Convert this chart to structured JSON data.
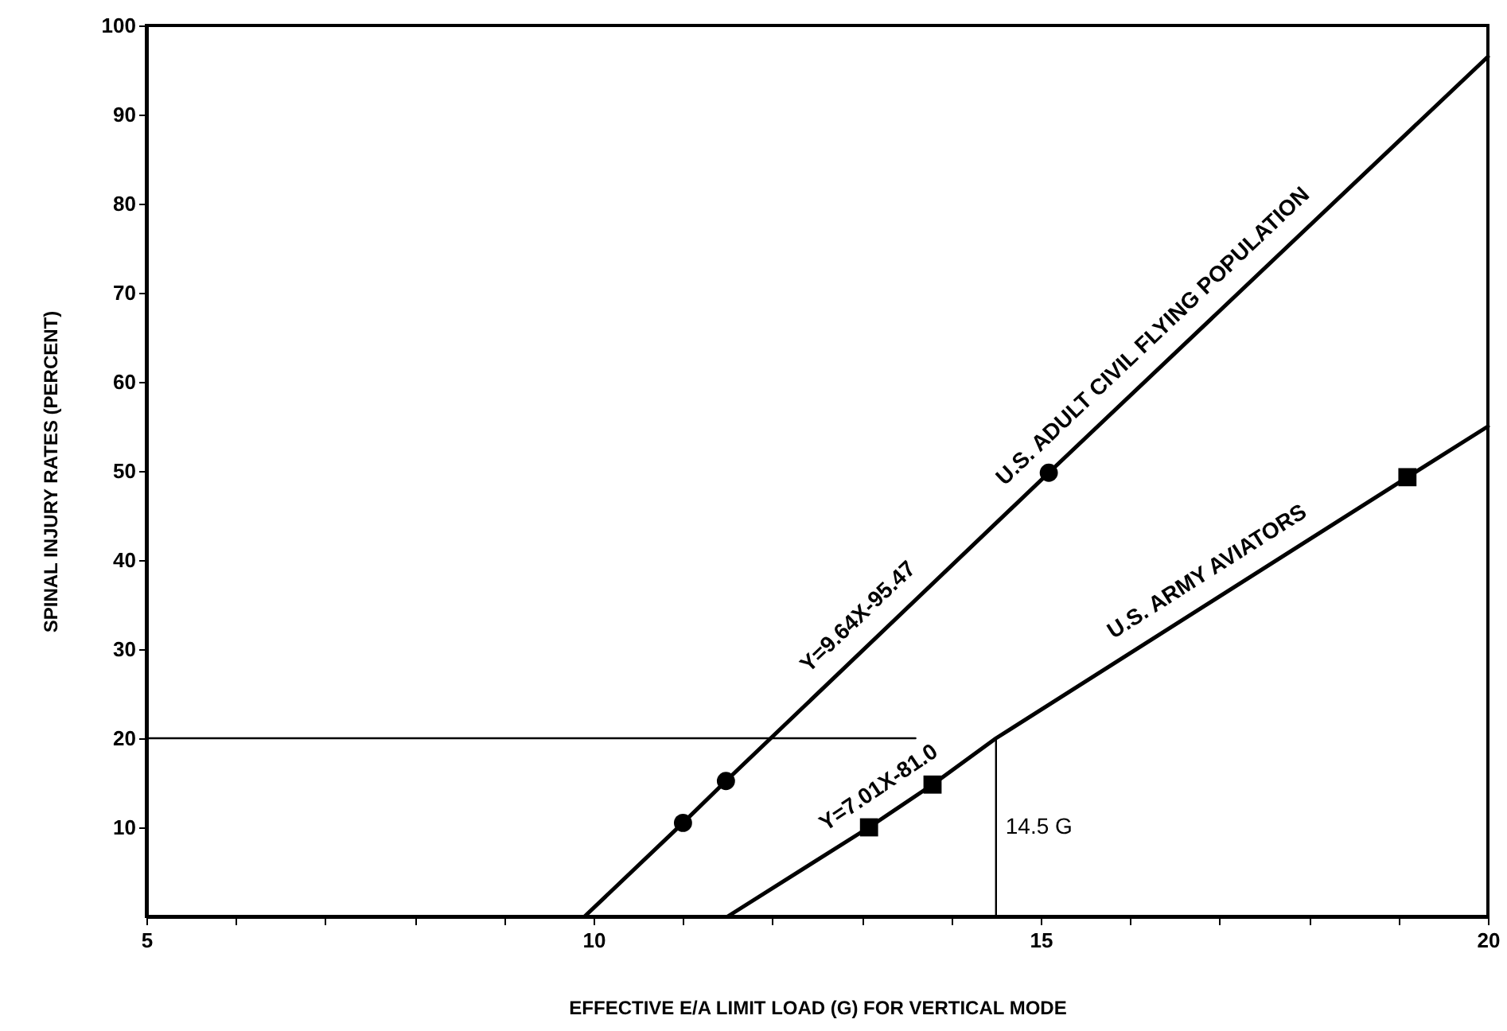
{
  "chart_data": {
    "type": "line",
    "xlabel": "EFFECTIVE E/A LIMIT LOAD (G) FOR VERTICAL MODE",
    "ylabel": "SPINAL INJURY RATES (PERCENT)",
    "xlim": [
      5,
      20
    ],
    "ylim": [
      0,
      100
    ],
    "xticks": [
      5,
      {
        "value": 6,
        "label": null
      },
      {
        "value": 7,
        "label": null
      },
      {
        "value": 8,
        "label": null
      },
      {
        "value": 9,
        "label": null
      },
      10,
      {
        "value": 11,
        "label": null
      },
      {
        "value": 12,
        "label": null
      },
      {
        "value": 13,
        "label": null
      },
      {
        "value": 14,
        "label": null
      },
      15,
      {
        "value": 16,
        "label": null
      },
      {
        "value": 17,
        "label": null
      },
      {
        "value": 18,
        "label": null
      },
      {
        "value": 19,
        "label": null
      },
      20
    ],
    "yticks": [
      10,
      20,
      30,
      40,
      50,
      60,
      70,
      80,
      90,
      100
    ],
    "grid": false,
    "legend": false,
    "series": [
      {
        "name": "U.S. ADULT CIVIL FLYING POPULATION",
        "color": "#000000",
        "marker": "none",
        "x": [
          9.9,
          11.0,
          11.48,
          15.09,
          20
        ],
        "values": [
          0,
          10.5,
          15.2,
          49.8,
          96.5
        ]
      },
      {
        "type": "scatter",
        "color": "#000000",
        "marker": "circle",
        "x": [
          11.0,
          11.48,
          15.09
        ],
        "values": [
          10.5,
          15.2,
          49.8
        ]
      },
      {
        "name": "U.S. ARMY AVIATORS",
        "color": "#000000",
        "marker": "none",
        "x": [
          11.5,
          13.08,
          13.79,
          14.5,
          19.1,
          20
        ],
        "values": [
          0,
          10.0,
          14.8,
          20,
          49.3,
          55
        ]
      },
      {
        "type": "scatter",
        "color": "#000000",
        "marker": "square",
        "x": [
          13.08,
          13.79,
          19.1
        ],
        "values": [
          10.0,
          14.8,
          49.3
        ]
      },
      {
        "color": "#000000",
        "marker": "none",
        "x": [
          5,
          13.6
        ],
        "values": [
          20,
          20
        ]
      },
      {
        "color": "#000000",
        "marker": "none",
        "x": [
          14.5,
          14.5
        ],
        "values": [
          0,
          20
        ]
      }
    ],
    "annotations": [
      {
        "text": "Y=9.64X-95.47",
        "x": 13.17,
        "y": 31.4
      },
      {
        "text": "Y=7.01X-81.0",
        "x": 13.36,
        "y": 11.9
      },
      {
        "text": "14.5 G",
        "x": 14.5,
        "y": 10
      }
    ]
  }
}
